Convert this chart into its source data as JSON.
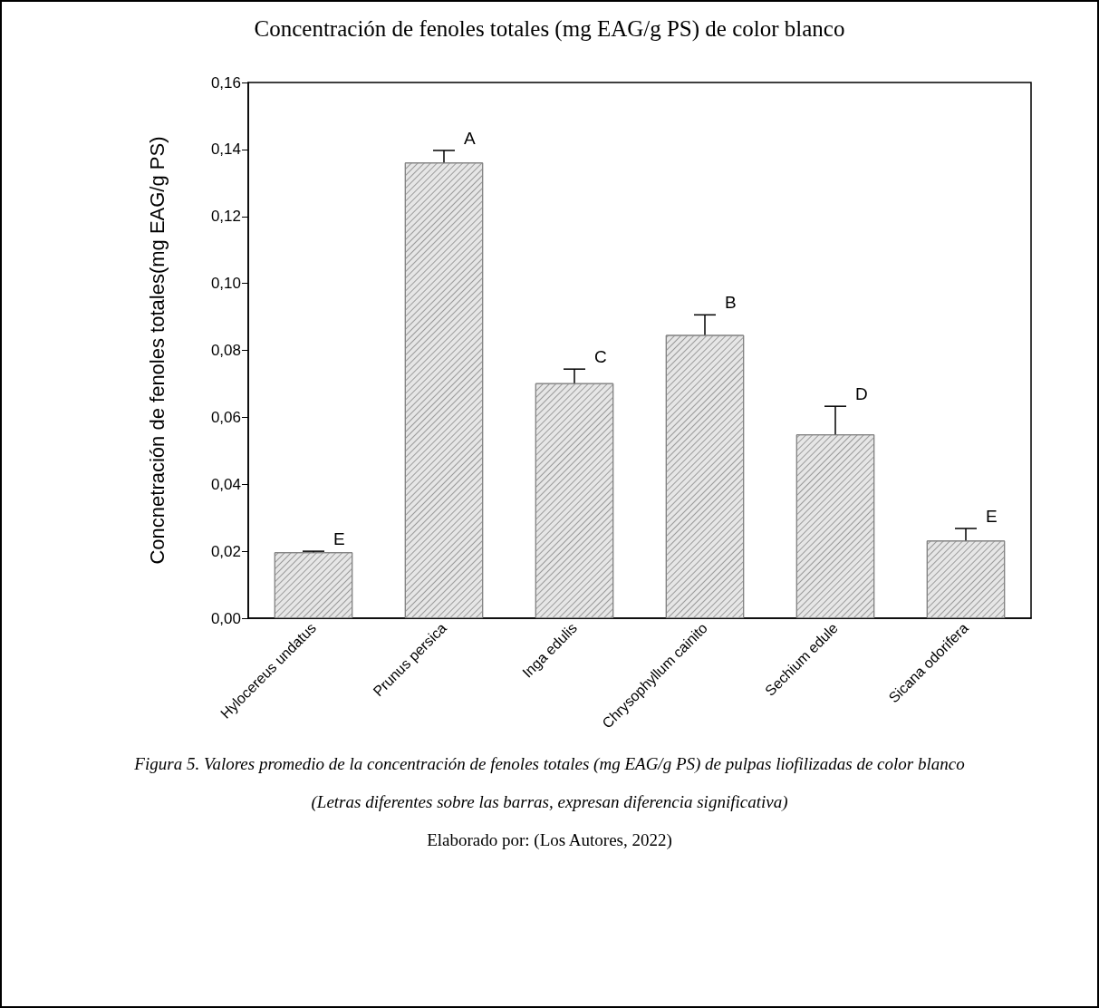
{
  "chart_data": {
    "type": "bar",
    "title": "Concentración de fenoles totales (mg EAG/g PS) de color blanco",
    "ylabel": "Concnetración de fenoles totales(mg EAG/g PS)",
    "categories": [
      "Hylocereus undatus",
      "Prunus persica",
      "Inga edulis",
      "Chrysophyllum cainito",
      "Sechium edule",
      "Sicana odorifera"
    ],
    "values": [
      0.0197,
      0.1361,
      0.0702,
      0.0846,
      0.0549,
      0.0232
    ],
    "errors": [
      [
        0.0197,
        0.02
      ],
      [
        0.1361,
        0.1397
      ],
      [
        0.0702,
        0.0744
      ],
      [
        0.0846,
        0.0906
      ],
      [
        0.0549,
        0.0633
      ],
      [
        0.0232,
        0.0268
      ]
    ],
    "color": "#e6e6e6",
    "ylim": [
      0,
      0.16
    ],
    "yticks": [
      {
        "value": 0,
        "label": "0,00"
      },
      {
        "value": 0.02,
        "label": "0,02"
      },
      {
        "value": 0.04,
        "label": "0,04"
      },
      {
        "value": 0.06,
        "label": "0,06"
      },
      {
        "value": 0.08,
        "label": "0,08"
      },
      {
        "value": 0.1,
        "label": "0,10"
      },
      {
        "value": 0.12,
        "label": "0,12"
      },
      {
        "value": 0.14,
        "label": "0,14"
      },
      {
        "value": 0.16,
        "label": "0,16"
      }
    ],
    "grid": false,
    "annotations": [
      {
        "text": "E",
        "x": "Hylocereus undatus",
        "y": 0.02
      },
      {
        "text": "A",
        "x": "Prunus persica",
        "y": 0.1397
      },
      {
        "text": "C",
        "x": "Inga edulis",
        "y": 0.0744
      },
      {
        "text": "B",
        "x": "Chrysophyllum cainito",
        "y": 0.0906
      },
      {
        "text": "D",
        "x": "Sechium edule",
        "y": 0.0633
      },
      {
        "text": "E",
        "x": "Sicana odorifera",
        "y": 0.0268
      },
      "Figura 5. Valores promedio de la concentración de fenoles totales (mg EAG/g PS) de pulpas liofilizadas de color blanco",
      "(Letras diferentes sobre las barras, expresan diferencia significativa)",
      "Elaborado por: (Los Autores, 2022)"
    ]
  }
}
